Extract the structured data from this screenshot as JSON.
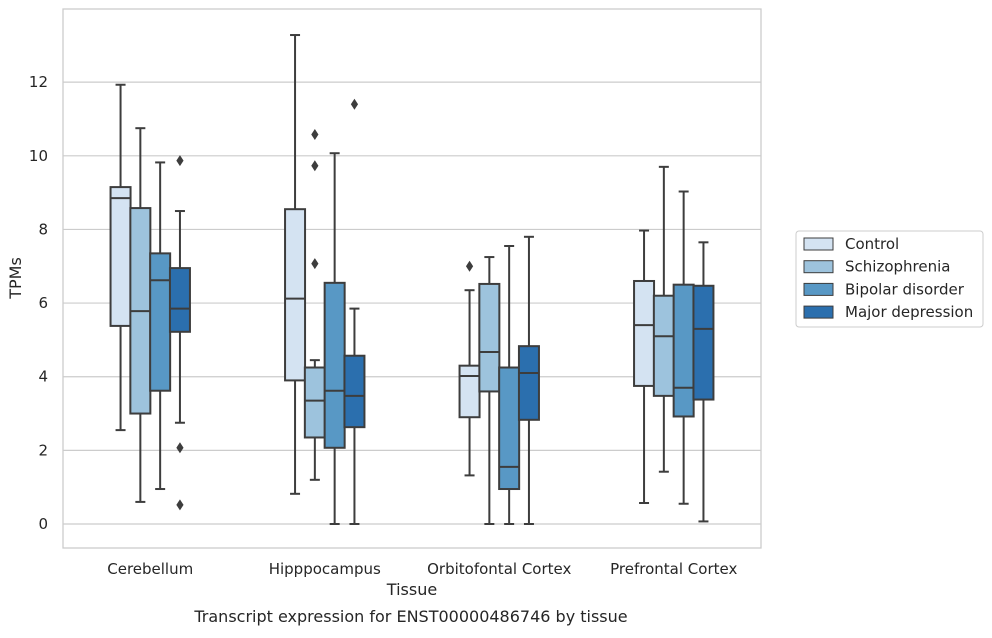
{
  "chart_data": {
    "type": "box",
    "caption": "Transcript expression for ENST00000486746 by tissue",
    "xlabel": "Tissue",
    "ylabel": "TPMs",
    "ylim": [
      -0.65,
      13.9
    ],
    "yticks": [
      0,
      2,
      4,
      6,
      8,
      10,
      12
    ],
    "grid": "horizontal",
    "legend_position": "right",
    "categories": [
      "Cerebellum",
      "Hipppocampus",
      "Orbitofontal Cortex",
      "Prefrontal Cortex"
    ],
    "series": [
      {
        "name": "Control",
        "color": "#d4e3f2",
        "boxes": [
          {
            "whisker_low": 2.55,
            "q1": 5.38,
            "median": 8.85,
            "q3": 9.15,
            "whisker_high": 11.93,
            "outliers": []
          },
          {
            "whisker_low": 0.82,
            "q1": 3.9,
            "median": 6.12,
            "q3": 8.55,
            "whisker_high": 13.28,
            "outliers": []
          },
          {
            "whisker_low": 1.32,
            "q1": 2.9,
            "median": 4.02,
            "q3": 4.3,
            "whisker_high": 6.35,
            "outliers": [
              7.0
            ]
          },
          {
            "whisker_low": 0.57,
            "q1": 3.75,
            "median": 5.4,
            "q3": 6.6,
            "whisker_high": 7.97,
            "outliers": []
          }
        ]
      },
      {
        "name": "Schizophrenia",
        "color": "#9dc3dd",
        "boxes": [
          {
            "whisker_low": 0.6,
            "q1": 3.0,
            "median": 5.78,
            "q3": 8.58,
            "whisker_high": 10.75,
            "outliers": []
          },
          {
            "whisker_low": 1.2,
            "q1": 2.35,
            "median": 3.35,
            "q3": 4.25,
            "whisker_high": 4.45,
            "outliers": [
              7.07,
              9.73,
              10.58
            ]
          },
          {
            "whisker_low": 0.0,
            "q1": 3.6,
            "median": 4.67,
            "q3": 6.52,
            "whisker_high": 7.25,
            "outliers": []
          },
          {
            "whisker_low": 1.42,
            "q1": 3.48,
            "median": 5.1,
            "q3": 6.2,
            "whisker_high": 9.7,
            "outliers": []
          }
        ]
      },
      {
        "name": "Bipolar disorder",
        "color": "#5898c5",
        "boxes": [
          {
            "whisker_low": 0.95,
            "q1": 3.62,
            "median": 6.62,
            "q3": 7.35,
            "whisker_high": 9.82,
            "outliers": []
          },
          {
            "whisker_low": 0.0,
            "q1": 2.07,
            "median": 3.62,
            "q3": 6.55,
            "whisker_high": 10.07,
            "outliers": []
          },
          {
            "whisker_low": 0.0,
            "q1": 0.95,
            "median": 1.55,
            "q3": 4.25,
            "whisker_high": 7.55,
            "outliers": []
          },
          {
            "whisker_low": 0.55,
            "q1": 2.92,
            "median": 3.7,
            "q3": 6.5,
            "whisker_high": 9.03,
            "outliers": []
          }
        ]
      },
      {
        "name": "Major depression",
        "color": "#2b6fae",
        "boxes": [
          {
            "whisker_low": 2.75,
            "q1": 5.22,
            "median": 5.85,
            "q3": 6.95,
            "whisker_high": 8.5,
            "outliers": [
              9.87,
              2.07,
              0.52
            ]
          },
          {
            "whisker_low": 0.0,
            "q1": 2.63,
            "median": 3.48,
            "q3": 4.57,
            "whisker_high": 5.85,
            "outliers": [
              11.4
            ]
          },
          {
            "whisker_low": 0.0,
            "q1": 2.83,
            "median": 4.1,
            "q3": 4.83,
            "whisker_high": 7.8,
            "outliers": []
          },
          {
            "whisker_low": 0.07,
            "q1": 3.38,
            "median": 5.3,
            "q3": 6.47,
            "whisker_high": 7.65,
            "outliers": []
          }
        ]
      }
    ]
  }
}
